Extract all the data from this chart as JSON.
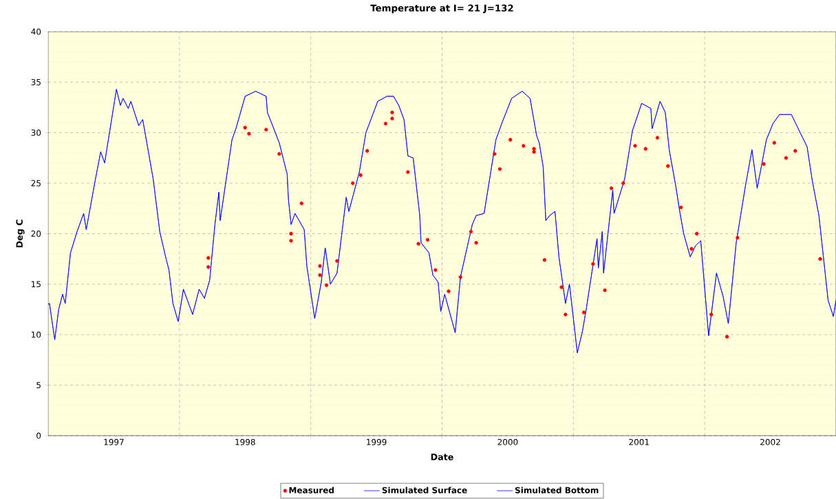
{
  "chart_data": {
    "type": "line",
    "title": "Temperature at I= 21 J=132",
    "xlabel": "Date",
    "ylabel": "Deg C",
    "xlim": [
      1997.0,
      2003.0
    ],
    "ylim": [
      0,
      40
    ],
    "xticks": [
      {
        "value": 1997.5,
        "label": "1997"
      },
      {
        "value": 1998,
        "label": null
      },
      {
        "value": 1998.5,
        "label": "1998"
      },
      {
        "value": 1999,
        "label": null
      },
      {
        "value": 1999.5,
        "label": "1999"
      },
      {
        "value": 2000,
        "label": null
      },
      {
        "value": 2000.5,
        "label": "2000"
      },
      {
        "value": 2001,
        "label": null
      },
      {
        "value": 2001.5,
        "label": "2001"
      },
      {
        "value": 2002,
        "label": null
      },
      {
        "value": 2002.5,
        "label": "2002"
      }
    ],
    "yticks": [
      0,
      5,
      10,
      15,
      20,
      25,
      30,
      35,
      40
    ],
    "grid": true,
    "legend": "bottom",
    "series": [
      {
        "name": "Measured",
        "type": "scatter",
        "color": "#ff0000",
        "x": [
          1998.22,
          1998.22,
          1998.5,
          1998.53,
          1998.66,
          1998.76,
          1998.85,
          1998.85,
          1998.93,
          1999.07,
          1999.07,
          1999.12,
          1999.2,
          1999.32,
          1999.38,
          1999.43,
          1999.57,
          1999.62,
          1999.62,
          1999.74,
          1999.82,
          1999.89,
          1999.95,
          2000.05,
          2000.14,
          2000.22,
          2000.26,
          2000.4,
          2000.44,
          2000.52,
          2000.62,
          2000.7,
          2000.7,
          2000.78,
          2000.91,
          2000.94,
          2001.08,
          2001.15,
          2001.24,
          2001.29,
          2001.38,
          2001.47,
          2001.55,
          2001.64,
          2001.72,
          2001.82,
          2001.9,
          2001.94,
          2002.05,
          2002.17,
          2002.25,
          2002.45,
          2002.53,
          2002.62,
          2002.69,
          2002.88
        ],
        "values": [
          17.6,
          16.7,
          30.5,
          29.9,
          30.3,
          27.9,
          20.0,
          19.3,
          23.0,
          16.8,
          15.9,
          14.9,
          17.3,
          25.0,
          25.8,
          28.2,
          30.9,
          32.0,
          31.4,
          26.1,
          19.0,
          19.4,
          16.4,
          14.3,
          15.7,
          20.2,
          19.1,
          27.9,
          26.4,
          29.3,
          28.7,
          28.4,
          28.1,
          17.4,
          14.7,
          12.0,
          12.2,
          17.0,
          14.4,
          24.5,
          25.0,
          28.7,
          28.4,
          29.5,
          26.7,
          22.6,
          18.5,
          20.0,
          12.0,
          9.8,
          19.6,
          26.9,
          29.0,
          27.5,
          28.2,
          17.5
        ]
      },
      {
        "name": "Simulated Surface",
        "color": "#0000ff",
        "x": [
          1997.0,
          1997.01,
          1997.05,
          1997.08,
          1997.11,
          1997.13,
          1997.17,
          1997.22,
          1997.27,
          1997.29,
          1997.36,
          1997.4,
          1997.43,
          1997.52,
          1997.55,
          1997.57,
          1997.61,
          1997.63,
          1997.69,
          1997.72,
          1997.8,
          1997.85,
          1997.9,
          1997.92,
          1997.95,
          1997.99,
          1998.03,
          1998.1,
          1998.15,
          1998.19,
          1998.23,
          1998.27,
          1998.3,
          1998.31,
          1998.4,
          1998.43,
          1998.5,
          1998.58,
          1998.66,
          1998.67,
          1998.76,
          1998.82,
          1998.83,
          1998.85,
          1998.88,
          1998.95,
          1998.97,
          1999.03,
          1999.08,
          1999.11,
          1999.15,
          1999.2,
          1999.27,
          1999.29,
          1999.37,
          1999.42,
          1999.51,
          1999.58,
          1999.63,
          1999.67,
          1999.71,
          1999.74,
          1999.78,
          1999.83,
          1999.84,
          1999.9,
          1999.93,
          1999.97,
          1999.99,
          2000.02,
          2000.1,
          2000.14,
          2000.23,
          2000.26,
          2000.32,
          2000.41,
          2000.46,
          2000.53,
          2000.61,
          2000.67,
          2000.72,
          2000.74,
          2000.77,
          2000.79,
          2000.82,
          2000.86,
          2000.89,
          2000.94,
          2000.97,
          2001.03,
          2001.07,
          2001.1,
          2001.18,
          2001.19,
          2001.22,
          2001.23,
          2001.3,
          2001.31,
          2001.39,
          2001.45,
          2001.52,
          2001.59,
          2001.6,
          2001.66,
          2001.7,
          2001.73,
          2001.78,
          2001.81,
          2001.84,
          2001.89,
          2001.93,
          2001.97,
          2002.03,
          2002.09,
          2002.14,
          2002.18,
          2002.24,
          2002.31,
          2002.36,
          2002.4,
          2002.47,
          2002.52,
          2002.57,
          2002.66,
          2002.78,
          2002.82,
          2002.87,
          2002.94,
          2002.98,
          2003.0
        ],
        "values": [
          13.0,
          13.1,
          9.5,
          12.5,
          14.0,
          13.1,
          18.1,
          20.2,
          22.0,
          20.4,
          25.4,
          28.1,
          27.0,
          34.3,
          32.7,
          33.4,
          32.4,
          33.1,
          30.7,
          31.3,
          25.4,
          20.2,
          17.4,
          16.4,
          13.1,
          11.3,
          14.5,
          12.0,
          14.5,
          13.6,
          15.4,
          20.9,
          24.1,
          21.3,
          29.3,
          30.4,
          33.6,
          34.1,
          33.6,
          32.0,
          29.0,
          25.9,
          23.4,
          20.9,
          22.0,
          20.4,
          16.8,
          11.6,
          15.2,
          18.6,
          15.0,
          16.1,
          23.6,
          22.2,
          26.1,
          30.0,
          33.1,
          33.6,
          33.6,
          32.7,
          31.3,
          27.7,
          27.5,
          21.8,
          19.1,
          18.1,
          15.9,
          15.2,
          12.3,
          14.0,
          10.2,
          15.7,
          20.9,
          21.8,
          22.0,
          29.3,
          31.1,
          33.4,
          34.1,
          33.4,
          29.7,
          29.0,
          26.6,
          21.3,
          21.8,
          22.2,
          17.7,
          13.1,
          15.0,
          8.2,
          10.4,
          12.7,
          19.5,
          16.6,
          20.2,
          16.1,
          24.3,
          22.0,
          25.4,
          30.2,
          32.9,
          32.4,
          30.4,
          33.1,
          32.0,
          28.3,
          24.7,
          22.2,
          20.0,
          17.7,
          18.8,
          19.3,
          9.9,
          16.1,
          13.8,
          11.1,
          19.1,
          24.7,
          28.3,
          24.5,
          29.3,
          30.9,
          31.8,
          31.8,
          28.6,
          25.2,
          21.8,
          13.4,
          11.8,
          13.4
        ]
      },
      {
        "name": "Simulated Bottom",
        "color": "#0000ff",
        "x": [
          1997.0,
          1997.01,
          1997.05,
          1997.08,
          1997.11,
          1997.13,
          1997.17,
          1997.22,
          1997.27,
          1997.29,
          1997.36,
          1997.4,
          1997.43,
          1997.52,
          1997.55,
          1997.57,
          1997.61,
          1997.63,
          1997.69,
          1997.72,
          1997.8,
          1997.85,
          1997.9,
          1997.92,
          1997.95,
          1997.99,
          1998.03,
          1998.1,
          1998.15,
          1998.19,
          1998.23,
          1998.27,
          1998.3,
          1998.31,
          1998.4,
          1998.43,
          1998.5,
          1998.58,
          1998.66,
          1998.67,
          1998.76,
          1998.82,
          1998.83,
          1998.85,
          1998.88,
          1998.95,
          1998.97,
          1999.03,
          1999.08,
          1999.11,
          1999.15,
          1999.2,
          1999.27,
          1999.29,
          1999.37,
          1999.42,
          1999.51,
          1999.58,
          1999.63,
          1999.67,
          1999.71,
          1999.74,
          1999.78,
          1999.83,
          1999.84,
          1999.9,
          1999.93,
          1999.97,
          1999.99,
          2000.02,
          2000.1,
          2000.14,
          2000.23,
          2000.26,
          2000.32,
          2000.41,
          2000.46,
          2000.53,
          2000.61,
          2000.67,
          2000.72,
          2000.74,
          2000.77,
          2000.79,
          2000.82,
          2000.86,
          2000.89,
          2000.94,
          2000.97,
          2001.03,
          2001.07,
          2001.1,
          2001.18,
          2001.19,
          2001.22,
          2001.23,
          2001.3,
          2001.31,
          2001.39,
          2001.45,
          2001.52,
          2001.59,
          2001.6,
          2001.66,
          2001.7,
          2001.73,
          2001.78,
          2001.81,
          2001.84,
          2001.89,
          2001.93,
          2001.97,
          2002.03,
          2002.09,
          2002.14,
          2002.18,
          2002.24,
          2002.31,
          2002.36,
          2002.4,
          2002.47,
          2002.52,
          2002.57,
          2002.66,
          2002.78,
          2002.82,
          2002.87,
          2002.94,
          2002.98,
          2003.0
        ],
        "values": [
          13.0,
          13.1,
          9.5,
          12.5,
          14.0,
          13.1,
          18.1,
          20.2,
          22.0,
          20.4,
          25.4,
          28.1,
          27.0,
          34.3,
          32.7,
          33.4,
          32.4,
          33.1,
          30.7,
          31.3,
          25.4,
          20.2,
          17.4,
          16.4,
          13.1,
          11.3,
          14.5,
          12.0,
          14.5,
          13.6,
          15.4,
          20.9,
          24.1,
          21.3,
          29.3,
          30.4,
          33.6,
          34.1,
          33.6,
          32.0,
          29.0,
          25.9,
          23.4,
          20.9,
          22.0,
          20.4,
          16.8,
          11.6,
          15.2,
          18.6,
          15.0,
          16.1,
          23.6,
          22.2,
          26.1,
          30.0,
          33.1,
          33.6,
          33.6,
          32.7,
          31.3,
          27.7,
          27.5,
          21.8,
          19.1,
          18.1,
          15.9,
          15.2,
          12.3,
          14.0,
          10.2,
          15.7,
          20.9,
          21.8,
          22.0,
          29.3,
          31.1,
          33.4,
          34.1,
          33.4,
          29.7,
          29.0,
          26.6,
          21.3,
          21.8,
          22.2,
          17.7,
          13.1,
          15.0,
          8.2,
          10.4,
          12.7,
          19.5,
          16.6,
          20.2,
          16.1,
          24.3,
          22.0,
          25.4,
          30.2,
          32.9,
          32.4,
          30.4,
          33.1,
          32.0,
          28.3,
          24.7,
          22.2,
          20.0,
          17.7,
          18.8,
          19.3,
          9.9,
          16.1,
          13.8,
          11.1,
          19.1,
          24.7,
          28.3,
          24.5,
          29.3,
          30.9,
          31.8,
          31.8,
          28.6,
          25.2,
          21.8,
          13.4,
          11.8,
          13.4
        ]
      }
    ]
  }
}
